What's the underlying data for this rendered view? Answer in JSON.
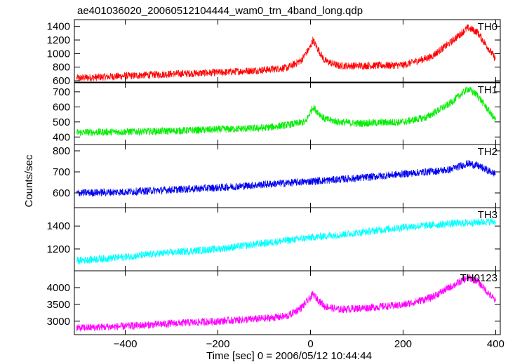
{
  "chart_data": {
    "type": "line",
    "title": "ae401036020_20060512104444_wam0_trn_4band_long.qdp",
    "xlabel": "Time [sec] 0 = 2006/05/12 10:44:44",
    "ylabel": "Counts/sec",
    "xlim": [
      -510,
      410
    ],
    "x_ticks": [
      -400,
      -200,
      0,
      200,
      400
    ],
    "x_tick_labels": [
      "−400",
      "−200",
      "0",
      "200",
      "400"
    ],
    "grid": false,
    "legend": "none",
    "panels": [
      {
        "name": "TH0",
        "color": "#ff0000",
        "ylim": [
          580,
          1500
        ],
        "y_ticks": [
          600,
          800,
          1000,
          1200,
          1400
        ],
        "y_tick_labels": [
          "600",
          "800",
          "1000",
          "1200",
          "1400"
        ],
        "x": [
          -500,
          -400,
          -300,
          -200,
          -100,
          -50,
          -20,
          0,
          5,
          30,
          60,
          100,
          200,
          260,
          300,
          340,
          360,
          400
        ],
        "y": [
          640,
          670,
          700,
          720,
          760,
          790,
          900,
          1100,
          1200,
          900,
          820,
          820,
          830,
          950,
          1150,
          1380,
          1320,
          920
        ]
      },
      {
        "name": "TH1",
        "color": "#00ee00",
        "ylim": [
          350,
          760
        ],
        "y_ticks": [
          400,
          500,
          600,
          700
        ],
        "y_tick_labels": [
          "400",
          "500",
          "600",
          "700"
        ],
        "x": [
          -500,
          -300,
          -200,
          -100,
          -50,
          -10,
          5,
          30,
          60,
          100,
          200,
          250,
          300,
          340,
          360,
          400
        ],
        "y": [
          430,
          440,
          450,
          460,
          480,
          500,
          600,
          520,
          500,
          490,
          500,
          530,
          620,
          720,
          680,
          510
        ]
      },
      {
        "name": "TH2",
        "color": "#0000ee",
        "ylim": [
          530,
          830
        ],
        "y_ticks": [
          600,
          700,
          800
        ],
        "y_tick_labels": [
          "600",
          "700",
          "800"
        ],
        "x": [
          -500,
          -400,
          -300,
          -200,
          -100,
          0,
          100,
          200,
          300,
          340,
          360,
          400
        ],
        "y": [
          600,
          605,
          615,
          625,
          640,
          655,
          670,
          690,
          710,
          740,
          730,
          690
        ]
      },
      {
        "name": "TH3",
        "color": "#00ffff",
        "ylim": [
          1010,
          1560
        ],
        "y_ticks": [
          1200,
          1400
        ],
        "y_tick_labels": [
          "1200",
          "1400"
        ],
        "x": [
          -500,
          -400,
          -300,
          -200,
          -100,
          0,
          100,
          200,
          300,
          400
        ],
        "y": [
          1100,
          1130,
          1170,
          1200,
          1250,
          1300,
          1340,
          1390,
          1420,
          1440
        ]
      },
      {
        "name": "TH0123",
        "color": "#ff00ff",
        "ylim": [
          2600,
          4500
        ],
        "y_ticks": [
          3000,
          3500,
          4000
        ],
        "y_tick_labels": [
          "3000",
          "3500",
          "4000"
        ],
        "x": [
          -500,
          -400,
          -300,
          -200,
          -100,
          -50,
          -20,
          0,
          5,
          30,
          60,
          100,
          200,
          260,
          300,
          340,
          360,
          400
        ],
        "y": [
          2800,
          2850,
          2930,
          3000,
          3080,
          3150,
          3400,
          3700,
          3800,
          3450,
          3350,
          3380,
          3480,
          3700,
          4000,
          4300,
          4200,
          3600
        ]
      }
    ]
  }
}
